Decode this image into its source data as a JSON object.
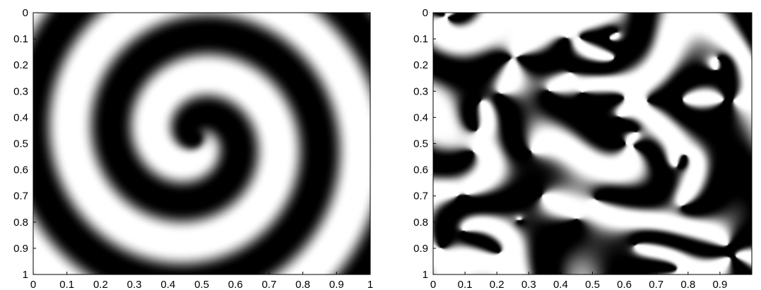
{
  "chart_data": [
    {
      "type": "heatmap",
      "title": "",
      "xlabel": "",
      "ylabel": "",
      "colormap": "gray",
      "pattern": "single spiral wave",
      "xlim": [
        0,
        1
      ],
      "ylim": [
        1,
        0
      ],
      "y_axis_inverted": true,
      "x_ticks": [
        "0",
        "0.1",
        "0.2",
        "0.3",
        "0.4",
        "0.5",
        "0.6",
        "0.7",
        "0.8",
        "0.9",
        "1"
      ],
      "y_ticks": [
        "0",
        "0.1",
        "0.2",
        "0.3",
        "0.4",
        "0.5",
        "0.6",
        "0.7",
        "0.8",
        "0.9",
        "1"
      ],
      "spiral_center": [
        0.48,
        0.48
      ],
      "arm_count": 1,
      "wavelength": 0.245,
      "grid": false,
      "legend": "none"
    },
    {
      "type": "heatmap",
      "title": "",
      "xlabel": "",
      "ylabel": "",
      "colormap": "gray",
      "pattern": "turbulent multi-spiral pattern",
      "xlim": [
        0,
        1
      ],
      "ylim": [
        1,
        0
      ],
      "y_axis_inverted": true,
      "x_ticks": [
        "0",
        "0.1",
        "0.2",
        "0.3",
        "0.4",
        "0.5",
        "0.6",
        "0.7",
        "0.8",
        "0.9"
      ],
      "y_ticks": [
        "0",
        "0.1",
        "0.2",
        "0.3",
        "0.4",
        "0.5",
        "0.6",
        "0.7",
        "0.8",
        "0.9",
        "1"
      ],
      "grid": false,
      "legend": "none"
    }
  ],
  "colors": {
    "dark": "#000000",
    "light": "#ffffff",
    "axis": "#000000"
  }
}
